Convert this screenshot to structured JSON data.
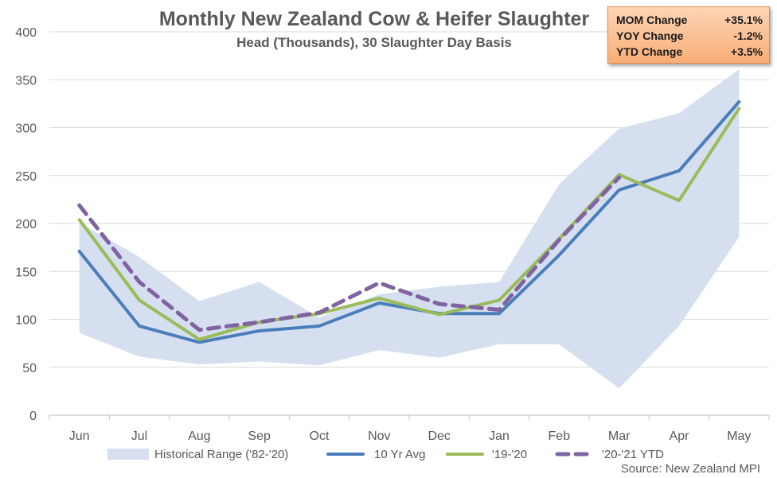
{
  "chart_data": {
    "type": "line",
    "title": "Monthly New Zealand Cow & Heifer Slaughter",
    "subtitle": "Head (Thousands), 30 Slaughter Day Basis",
    "categories": [
      "Jun",
      "Jul",
      "Aug",
      "Sep",
      "Oct",
      "Nov",
      "Dec",
      "Jan",
      "Feb",
      "Mar",
      "Apr",
      "May"
    ],
    "yticks": [
      "0",
      "50",
      "100",
      "150",
      "200",
      "250",
      "300",
      "350",
      "400"
    ],
    "ylim": [
      0,
      400
    ],
    "grid": true,
    "legend_position": "bottom",
    "range": {
      "name": "Historical Range ('82-'20)",
      "color": "#d5dfef",
      "low": [
        86,
        61,
        53,
        56,
        52,
        68,
        60,
        74,
        74,
        28,
        93,
        186
      ],
      "high": [
        201,
        165,
        119,
        139,
        102,
        126,
        134,
        139,
        241,
        299,
        315,
        361
      ]
    },
    "series": [
      {
        "name": "10 Yr Avg",
        "color": "#4a7ebb",
        "dash": "solid",
        "values": [
          171,
          93,
          76,
          88,
          93,
          117,
          106,
          106,
          167,
          235,
          255,
          327
        ]
      },
      {
        "name": "'19-'20",
        "color": "#9bbb59",
        "dash": "solid",
        "values": [
          204,
          120,
          79,
          97,
          106,
          122,
          105,
          120,
          184,
          251,
          224,
          320
        ]
      },
      {
        "name": "'20-'21 YTD",
        "color": "#8064a2",
        "dash": "dashed",
        "values": [
          219,
          139,
          89,
          97,
          107,
          138,
          116,
          110,
          183,
          248,
          null,
          null
        ]
      }
    ],
    "stats": [
      {
        "label": "MOM Change",
        "value": "+35.1%"
      },
      {
        "label": "YOY Change",
        "value": "-1.2%"
      },
      {
        "label": "YTD Change",
        "value": "+3.5%"
      }
    ],
    "source": "Source: New Zealand MPI"
  }
}
